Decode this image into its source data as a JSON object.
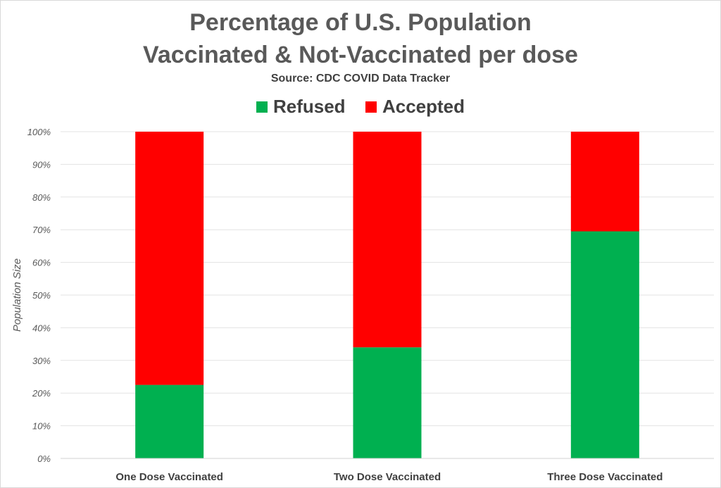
{
  "chart_data": {
    "type": "bar",
    "stacked": true,
    "title_line1": "Percentage of U.S. Population",
    "title_line2": "Vaccinated & Not-Vaccinated per dose",
    "subtitle": "Source: CDC COVID Data Tracker",
    "xlabel": "",
    "ylabel": "Population Size",
    "categories": [
      "One Dose Vaccinated",
      "Two Dose Vaccinated",
      "Three Dose Vaccinated"
    ],
    "series": [
      {
        "name": "Refused",
        "color": "#00b050",
        "values": [
          22.5,
          34,
          69.5
        ]
      },
      {
        "name": "Accepted",
        "color": "#ff0000",
        "values": [
          77.5,
          66,
          30.5
        ]
      }
    ],
    "ylim": [
      0,
      100
    ],
    "yticks": [
      0,
      10,
      20,
      30,
      40,
      50,
      60,
      70,
      80,
      90,
      100
    ],
    "ytick_labels": [
      "0%",
      "10%",
      "20%",
      "30%",
      "40%",
      "50%",
      "60%",
      "70%",
      "80%",
      "90%",
      "100%"
    ],
    "grid": true,
    "legend_position": "top"
  }
}
